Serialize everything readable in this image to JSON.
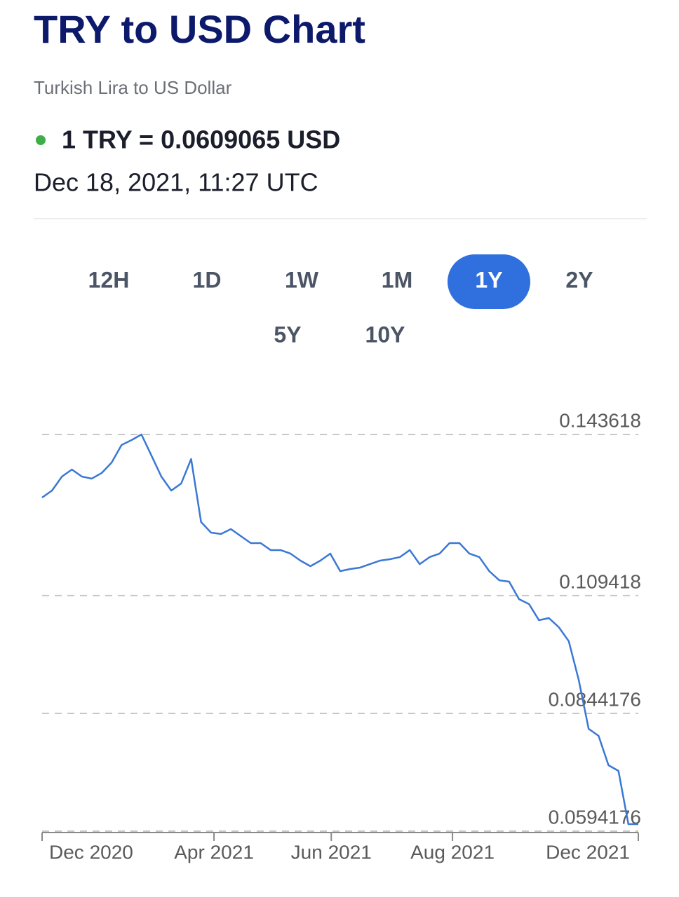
{
  "header": {
    "title": "TRY to USD Chart",
    "subtitle": "Turkish Lira to US Dollar",
    "rate": "1 TRY = 0.0609065 USD",
    "timestamp": "Dec 18, 2021, 11:27 UTC"
  },
  "time_ranges": {
    "options": [
      "12H",
      "1D",
      "1W",
      "1M",
      "1Y",
      "2Y",
      "5Y",
      "10Y"
    ],
    "active": 4
  },
  "chart_data": {
    "type": "line",
    "color": "#3a78d4",
    "grid": true,
    "values": [
      0.13023,
      0.13172,
      0.13469,
      0.13618,
      0.13469,
      0.13425,
      0.13544,
      0.13767,
      0.14139,
      0.14243,
      0.14362,
      0.13916,
      0.13469,
      0.13172,
      0.13321,
      0.13841,
      0.12503,
      0.12279,
      0.1225,
      0.12354,
      0.12205,
      0.12056,
      0.12056,
      0.11908,
      0.11908,
      0.11833,
      0.11684,
      0.11565,
      0.11684,
      0.11833,
      0.11461,
      0.11506,
      0.11536,
      0.1161,
      0.11684,
      0.11714,
      0.11759,
      0.11908,
      0.1161,
      0.11759,
      0.11833,
      0.12056,
      0.12056,
      0.11833,
      0.11759,
      0.11461,
      0.11268,
      0.11238,
      0.10866,
      0.10762,
      0.1042,
      0.10464,
      0.10271,
      0.09974,
      0.09155,
      0.08114,
      0.07965,
      0.0734,
      0.07221,
      0.06091,
      0.0609065
    ],
    "xlim": [
      0,
      60
    ],
    "xticks": [
      {
        "value": 0,
        "label": "Dec 2020"
      },
      {
        "value": 17.3,
        "label": "Apr 2021"
      },
      {
        "value": 29.1,
        "label": "Jun 2021"
      },
      {
        "value": 41.3,
        "label": "Aug 2021"
      },
      {
        "value": 60,
        "label": "Dec 2021"
      }
    ],
    "ylim": [
      0.0594176,
      0.143618
    ],
    "yticks": [
      0.143618,
      0.109418,
      0.0844176,
      0.0594176
    ]
  }
}
